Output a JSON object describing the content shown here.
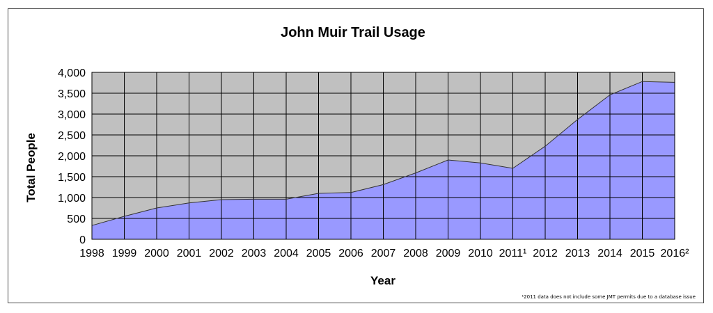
{
  "chart_data": {
    "type": "area",
    "title": "John Muir Trail Usage",
    "xlabel": "Year",
    "ylabel": "Total People",
    "categories": [
      "1998",
      "1999",
      "2000",
      "2001",
      "2002",
      "2003",
      "2004",
      "2005",
      "2006",
      "2007",
      "2008",
      "2009",
      "2010",
      "2011¹",
      "2012",
      "2013",
      "2014",
      "2015",
      "2016²"
    ],
    "series": [
      {
        "values": [
          330,
          550,
          750,
          870,
          950,
          960,
          960,
          1100,
          1120,
          1310,
          1590,
          1900,
          1830,
          1700,
          2230,
          2870,
          3460,
          3780,
          3760
        ]
      }
    ],
    "ylim": [
      0,
      4000
    ],
    "yticks": [
      0,
      500,
      1000,
      1500,
      2000,
      2500,
      3000,
      3500,
      4000
    ],
    "ytick_labels": [
      "0",
      "500",
      "1,000",
      "1,500",
      "2,000",
      "2,500",
      "3,000",
      "3,500",
      "4,000"
    ],
    "grid": true,
    "footnote": "¹2011 data does not include some JMT permits due to a database issue",
    "colors": {
      "area_fill": "#9999ff",
      "plot_background": "#c0c0c0",
      "grid": "#000000"
    }
  }
}
